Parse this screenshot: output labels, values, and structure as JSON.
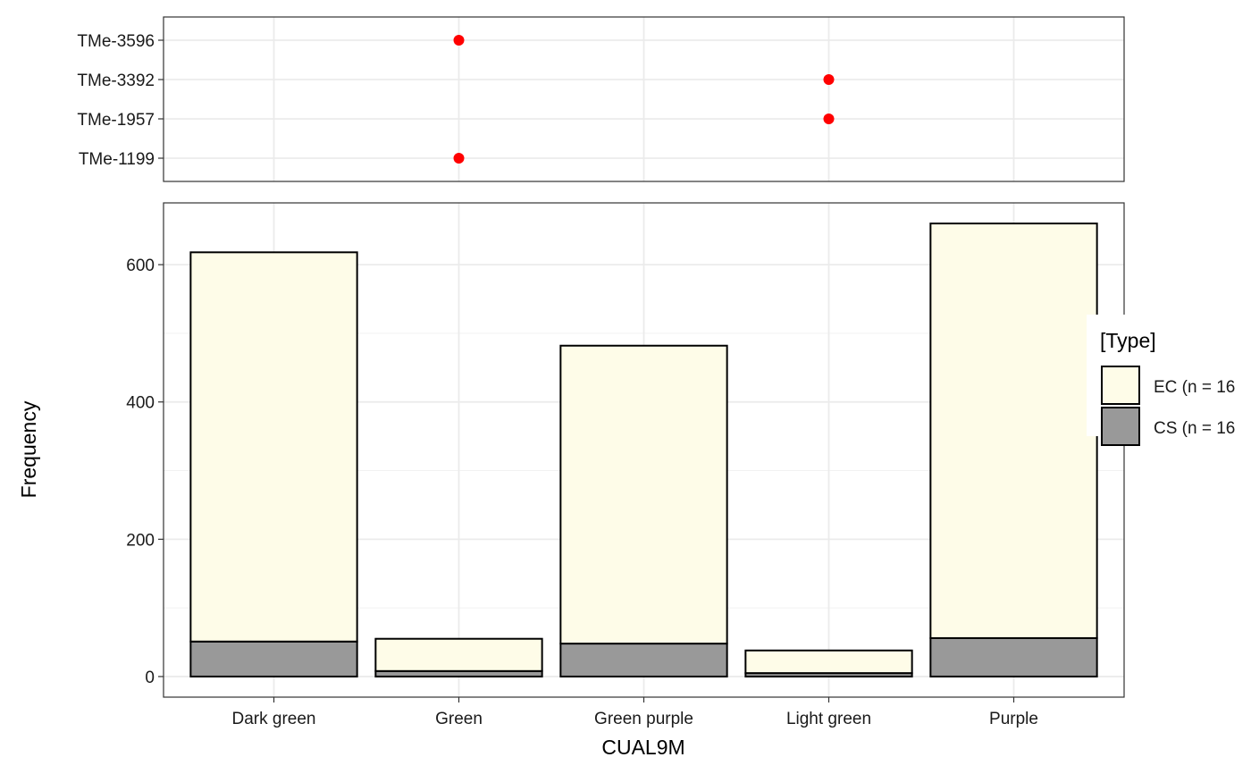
{
  "chart_data": [
    {
      "type": "scatter",
      "title": "",
      "y_categories": [
        "TMe-3596",
        "TMe-3392",
        "TMe-1957",
        "TMe-1199"
      ],
      "x_categories": [
        "Dark green",
        "Green",
        "Green purple",
        "Light green",
        "Purple"
      ],
      "points": [
        {
          "y": "TMe-3596",
          "x": "Green"
        },
        {
          "y": "TMe-3392",
          "x": "Light green"
        },
        {
          "y": "TMe-1957",
          "x": "Light green"
        },
        {
          "y": "TMe-1199",
          "x": "Green"
        }
      ],
      "point_color": "#ff0000",
      "grid": true
    },
    {
      "type": "bar",
      "stacked": true,
      "categories": [
        "Dark green",
        "Green",
        "Green purple",
        "Light green",
        "Purple"
      ],
      "series": [
        {
          "name": "CS (n = 16",
          "color": "#999999",
          "values": [
            51,
            8,
            48,
            5,
            56
          ]
        },
        {
          "name": "EC (n = 16",
          "color": "#fefce8",
          "values": [
            567,
            47,
            434,
            33,
            604
          ]
        }
      ],
      "xlabel": "CUAL9M",
      "ylabel": "Frequency",
      "ylim": [
        -30,
        690
      ],
      "yticks": [
        0,
        200,
        400,
        600
      ],
      "grid": true,
      "legend": {
        "title": "[Type]",
        "position": "right",
        "entries": [
          "EC (n = 16",
          "CS (n = 16"
        ]
      }
    }
  ]
}
